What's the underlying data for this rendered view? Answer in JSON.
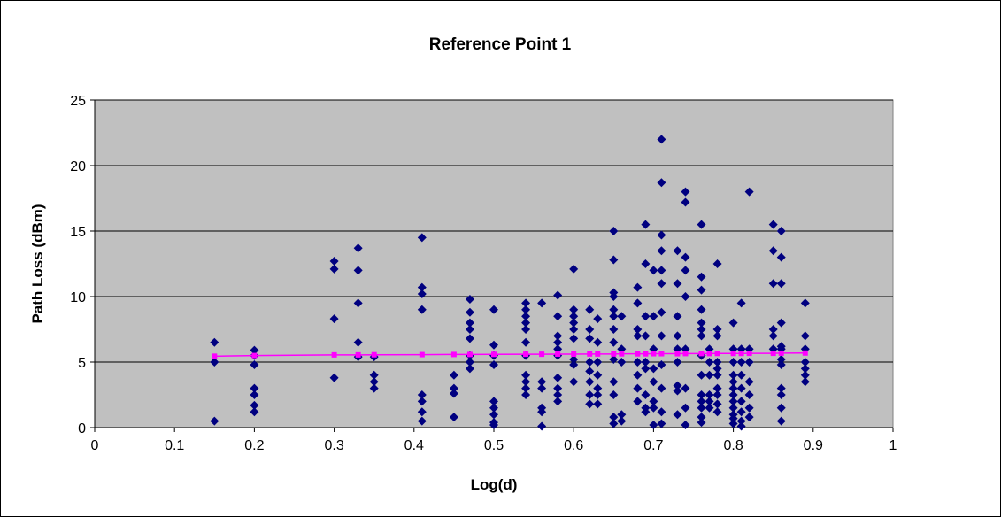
{
  "chart_data": {
    "type": "scatter",
    "title": "Reference Point 1",
    "xlabel": "Log(d)",
    "ylabel": "Path Loss (dBm)",
    "xlim": [
      0,
      1
    ],
    "ylim": [
      0,
      25
    ],
    "x_ticks": [
      "0",
      "0.1",
      "0.2",
      "0.3",
      "0.4",
      "0.5",
      "0.6",
      "0.7",
      "0.8",
      "0.9",
      "1"
    ],
    "y_ticks": [
      "0",
      "5",
      "10",
      "15",
      "20",
      "25"
    ],
    "grid": "horizontal",
    "plot_background": "#c0c0c0",
    "series": [
      {
        "marker": "diamond",
        "color": "#000080",
        "points": [
          [
            0.15,
            6.5
          ],
          [
            0.15,
            5.0
          ],
          [
            0.15,
            0.5
          ],
          [
            0.2,
            5.9
          ],
          [
            0.2,
            5.5
          ],
          [
            0.2,
            4.8
          ],
          [
            0.2,
            3.0
          ],
          [
            0.2,
            2.5
          ],
          [
            0.2,
            1.7
          ],
          [
            0.2,
            1.2
          ],
          [
            0.3,
            12.7
          ],
          [
            0.3,
            12.1
          ],
          [
            0.3,
            8.3
          ],
          [
            0.3,
            3.8
          ],
          [
            0.33,
            13.7
          ],
          [
            0.33,
            12.0
          ],
          [
            0.33,
            9.5
          ],
          [
            0.33,
            6.5
          ],
          [
            0.33,
            5.4
          ],
          [
            0.35,
            5.4
          ],
          [
            0.35,
            4.0
          ],
          [
            0.35,
            3.5
          ],
          [
            0.35,
            3.0
          ],
          [
            0.41,
            14.5
          ],
          [
            0.41,
            10.7
          ],
          [
            0.41,
            10.2
          ],
          [
            0.41,
            9.0
          ],
          [
            0.41,
            2.5
          ],
          [
            0.41,
            2.0
          ],
          [
            0.41,
            1.2
          ],
          [
            0.41,
            0.5
          ],
          [
            0.45,
            4.0
          ],
          [
            0.45,
            3.0
          ],
          [
            0.45,
            2.6
          ],
          [
            0.45,
            0.8
          ],
          [
            0.47,
            9.8
          ],
          [
            0.47,
            8.8
          ],
          [
            0.47,
            8.0
          ],
          [
            0.47,
            7.5
          ],
          [
            0.47,
            6.8
          ],
          [
            0.47,
            5.5
          ],
          [
            0.47,
            5.0
          ],
          [
            0.47,
            4.5
          ],
          [
            0.5,
            9.0
          ],
          [
            0.5,
            6.3
          ],
          [
            0.5,
            5.5
          ],
          [
            0.5,
            4.8
          ],
          [
            0.5,
            2.0
          ],
          [
            0.5,
            1.5
          ],
          [
            0.5,
            1.0
          ],
          [
            0.5,
            0.4
          ],
          [
            0.5,
            0.2
          ],
          [
            0.54,
            9.5
          ],
          [
            0.54,
            9.0
          ],
          [
            0.54,
            8.5
          ],
          [
            0.54,
            8.0
          ],
          [
            0.54,
            7.5
          ],
          [
            0.54,
            6.5
          ],
          [
            0.54,
            5.5
          ],
          [
            0.54,
            4.0
          ],
          [
            0.54,
            3.5
          ],
          [
            0.54,
            3.0
          ],
          [
            0.54,
            2.5
          ],
          [
            0.56,
            9.5
          ],
          [
            0.56,
            3.5
          ],
          [
            0.56,
            3.0
          ],
          [
            0.56,
            1.5
          ],
          [
            0.56,
            1.2
          ],
          [
            0.56,
            0.1
          ],
          [
            0.58,
            10.1
          ],
          [
            0.58,
            8.5
          ],
          [
            0.58,
            7.0
          ],
          [
            0.58,
            6.5
          ],
          [
            0.58,
            6.0
          ],
          [
            0.58,
            5.5
          ],
          [
            0.58,
            3.8
          ],
          [
            0.58,
            3.0
          ],
          [
            0.58,
            2.5
          ],
          [
            0.58,
            2.0
          ],
          [
            0.6,
            12.1
          ],
          [
            0.6,
            9.0
          ],
          [
            0.6,
            8.5
          ],
          [
            0.6,
            8.0
          ],
          [
            0.6,
            7.5
          ],
          [
            0.6,
            6.8
          ],
          [
            0.6,
            5.2
          ],
          [
            0.6,
            4.8
          ],
          [
            0.6,
            3.5
          ],
          [
            0.62,
            9.0
          ],
          [
            0.62,
            7.5
          ],
          [
            0.62,
            6.8
          ],
          [
            0.62,
            5.0
          ],
          [
            0.62,
            4.3
          ],
          [
            0.62,
            3.5
          ],
          [
            0.62,
            2.5
          ],
          [
            0.62,
            1.8
          ],
          [
            0.63,
            8.3
          ],
          [
            0.63,
            6.5
          ],
          [
            0.63,
            5.0
          ],
          [
            0.63,
            4.0
          ],
          [
            0.63,
            3.0
          ],
          [
            0.63,
            2.5
          ],
          [
            0.63,
            1.8
          ],
          [
            0.65,
            15.0
          ],
          [
            0.65,
            12.8
          ],
          [
            0.65,
            10.3
          ],
          [
            0.65,
            10.0
          ],
          [
            0.65,
            9.0
          ],
          [
            0.65,
            8.5
          ],
          [
            0.65,
            7.5
          ],
          [
            0.65,
            6.5
          ],
          [
            0.65,
            5.2
          ],
          [
            0.65,
            3.5
          ],
          [
            0.65,
            2.5
          ],
          [
            0.65,
            0.8
          ],
          [
            0.65,
            0.3
          ],
          [
            0.66,
            8.5
          ],
          [
            0.66,
            6.0
          ],
          [
            0.66,
            5.0
          ],
          [
            0.66,
            1.0
          ],
          [
            0.66,
            0.5
          ],
          [
            0.68,
            10.7
          ],
          [
            0.68,
            9.5
          ],
          [
            0.68,
            7.5
          ],
          [
            0.68,
            7.0
          ],
          [
            0.68,
            5.0
          ],
          [
            0.68,
            4.0
          ],
          [
            0.68,
            3.0
          ],
          [
            0.68,
            2.0
          ],
          [
            0.69,
            15.5
          ],
          [
            0.69,
            12.5
          ],
          [
            0.69,
            8.5
          ],
          [
            0.69,
            7.0
          ],
          [
            0.69,
            5.0
          ],
          [
            0.69,
            4.5
          ],
          [
            0.69,
            2.5
          ],
          [
            0.69,
            1.5
          ],
          [
            0.69,
            1.2
          ],
          [
            0.7,
            12.0
          ],
          [
            0.7,
            8.5
          ],
          [
            0.7,
            6.0
          ],
          [
            0.7,
            4.5
          ],
          [
            0.7,
            3.5
          ],
          [
            0.7,
            2.0
          ],
          [
            0.7,
            1.5
          ],
          [
            0.7,
            0.2
          ],
          [
            0.71,
            22.0
          ],
          [
            0.71,
            18.7
          ],
          [
            0.71,
            14.7
          ],
          [
            0.71,
            13.5
          ],
          [
            0.71,
            12.0
          ],
          [
            0.71,
            11.0
          ],
          [
            0.71,
            8.8
          ],
          [
            0.71,
            7.0
          ],
          [
            0.71,
            4.8
          ],
          [
            0.71,
            3.0
          ],
          [
            0.71,
            1.2
          ],
          [
            0.71,
            0.3
          ],
          [
            0.73,
            13.5
          ],
          [
            0.73,
            11.0
          ],
          [
            0.73,
            8.5
          ],
          [
            0.73,
            7.0
          ],
          [
            0.73,
            6.0
          ],
          [
            0.73,
            5.0
          ],
          [
            0.73,
            3.2
          ],
          [
            0.73,
            2.8
          ],
          [
            0.73,
            1.0
          ],
          [
            0.74,
            18.0
          ],
          [
            0.74,
            17.2
          ],
          [
            0.74,
            13.0
          ],
          [
            0.74,
            12.0
          ],
          [
            0.74,
            10.0
          ],
          [
            0.74,
            6.0
          ],
          [
            0.74,
            3.0
          ],
          [
            0.74,
            1.5
          ],
          [
            0.74,
            0.2
          ],
          [
            0.76,
            15.5
          ],
          [
            0.76,
            11.5
          ],
          [
            0.76,
            10.5
          ],
          [
            0.76,
            9.0
          ],
          [
            0.76,
            8.0
          ],
          [
            0.76,
            7.5
          ],
          [
            0.76,
            7.0
          ],
          [
            0.76,
            5.5
          ],
          [
            0.76,
            4.0
          ],
          [
            0.76,
            2.5
          ],
          [
            0.76,
            2.0
          ],
          [
            0.76,
            1.5
          ],
          [
            0.76,
            0.8
          ],
          [
            0.76,
            0.4
          ],
          [
            0.77,
            6.0
          ],
          [
            0.77,
            5.0
          ],
          [
            0.77,
            4.0
          ],
          [
            0.77,
            2.5
          ],
          [
            0.77,
            2.0
          ],
          [
            0.77,
            1.5
          ],
          [
            0.78,
            12.5
          ],
          [
            0.78,
            7.5
          ],
          [
            0.78,
            7.0
          ],
          [
            0.78,
            5.0
          ],
          [
            0.78,
            4.5
          ],
          [
            0.78,
            4.0
          ],
          [
            0.78,
            3.0
          ],
          [
            0.78,
            2.5
          ],
          [
            0.78,
            1.8
          ],
          [
            0.78,
            1.2
          ],
          [
            0.8,
            8.0
          ],
          [
            0.8,
            6.0
          ],
          [
            0.8,
            5.0
          ],
          [
            0.8,
            4.0
          ],
          [
            0.8,
            3.5
          ],
          [
            0.8,
            3.0
          ],
          [
            0.8,
            2.5
          ],
          [
            0.8,
            2.0
          ],
          [
            0.8,
            1.5
          ],
          [
            0.8,
            1.0
          ],
          [
            0.8,
            0.7
          ],
          [
            0.8,
            0.3
          ],
          [
            0.81,
            9.5
          ],
          [
            0.81,
            6.0
          ],
          [
            0.81,
            5.0
          ],
          [
            0.81,
            4.0
          ],
          [
            0.81,
            3.0
          ],
          [
            0.81,
            2.0
          ],
          [
            0.81,
            1.2
          ],
          [
            0.81,
            0.5
          ],
          [
            0.81,
            0.1
          ],
          [
            0.82,
            18.0
          ],
          [
            0.82,
            6.0
          ],
          [
            0.82,
            5.0
          ],
          [
            0.82,
            3.5
          ],
          [
            0.82,
            2.5
          ],
          [
            0.82,
            1.5
          ],
          [
            0.82,
            0.8
          ],
          [
            0.85,
            15.5
          ],
          [
            0.85,
            13.5
          ],
          [
            0.85,
            11.0
          ],
          [
            0.85,
            7.5
          ],
          [
            0.85,
            7.0
          ],
          [
            0.85,
            6.0
          ],
          [
            0.86,
            15.0
          ],
          [
            0.86,
            13.0
          ],
          [
            0.86,
            11.0
          ],
          [
            0.86,
            8.0
          ],
          [
            0.86,
            6.0
          ],
          [
            0.86,
            6.2
          ],
          [
            0.86,
            5.2
          ],
          [
            0.86,
            4.8
          ],
          [
            0.86,
            3.0
          ],
          [
            0.86,
            2.5
          ],
          [
            0.86,
            1.5
          ],
          [
            0.86,
            0.5
          ],
          [
            0.89,
            9.5
          ],
          [
            0.89,
            7.0
          ],
          [
            0.89,
            6.0
          ],
          [
            0.89,
            5.0
          ],
          [
            0.89,
            4.5
          ],
          [
            0.89,
            4.0
          ],
          [
            0.89,
            3.5
          ]
        ]
      },
      {
        "marker": "square",
        "color": "#ff00ff",
        "line": true,
        "points": [
          [
            0.15,
            5.45
          ],
          [
            0.2,
            5.5
          ],
          [
            0.3,
            5.55
          ],
          [
            0.33,
            5.55
          ],
          [
            0.35,
            5.56
          ],
          [
            0.41,
            5.57
          ],
          [
            0.45,
            5.58
          ],
          [
            0.47,
            5.58
          ],
          [
            0.5,
            5.59
          ],
          [
            0.54,
            5.6
          ],
          [
            0.56,
            5.6
          ],
          [
            0.58,
            5.61
          ],
          [
            0.6,
            5.61
          ],
          [
            0.62,
            5.62
          ],
          [
            0.63,
            5.62
          ],
          [
            0.65,
            5.62
          ],
          [
            0.66,
            5.63
          ],
          [
            0.68,
            5.63
          ],
          [
            0.69,
            5.63
          ],
          [
            0.7,
            5.64
          ],
          [
            0.71,
            5.64
          ],
          [
            0.73,
            5.64
          ],
          [
            0.74,
            5.65
          ],
          [
            0.76,
            5.65
          ],
          [
            0.77,
            5.65
          ],
          [
            0.78,
            5.66
          ],
          [
            0.8,
            5.66
          ],
          [
            0.81,
            5.66
          ],
          [
            0.82,
            5.67
          ],
          [
            0.85,
            5.67
          ],
          [
            0.86,
            5.68
          ],
          [
            0.89,
            5.69
          ]
        ]
      }
    ]
  }
}
